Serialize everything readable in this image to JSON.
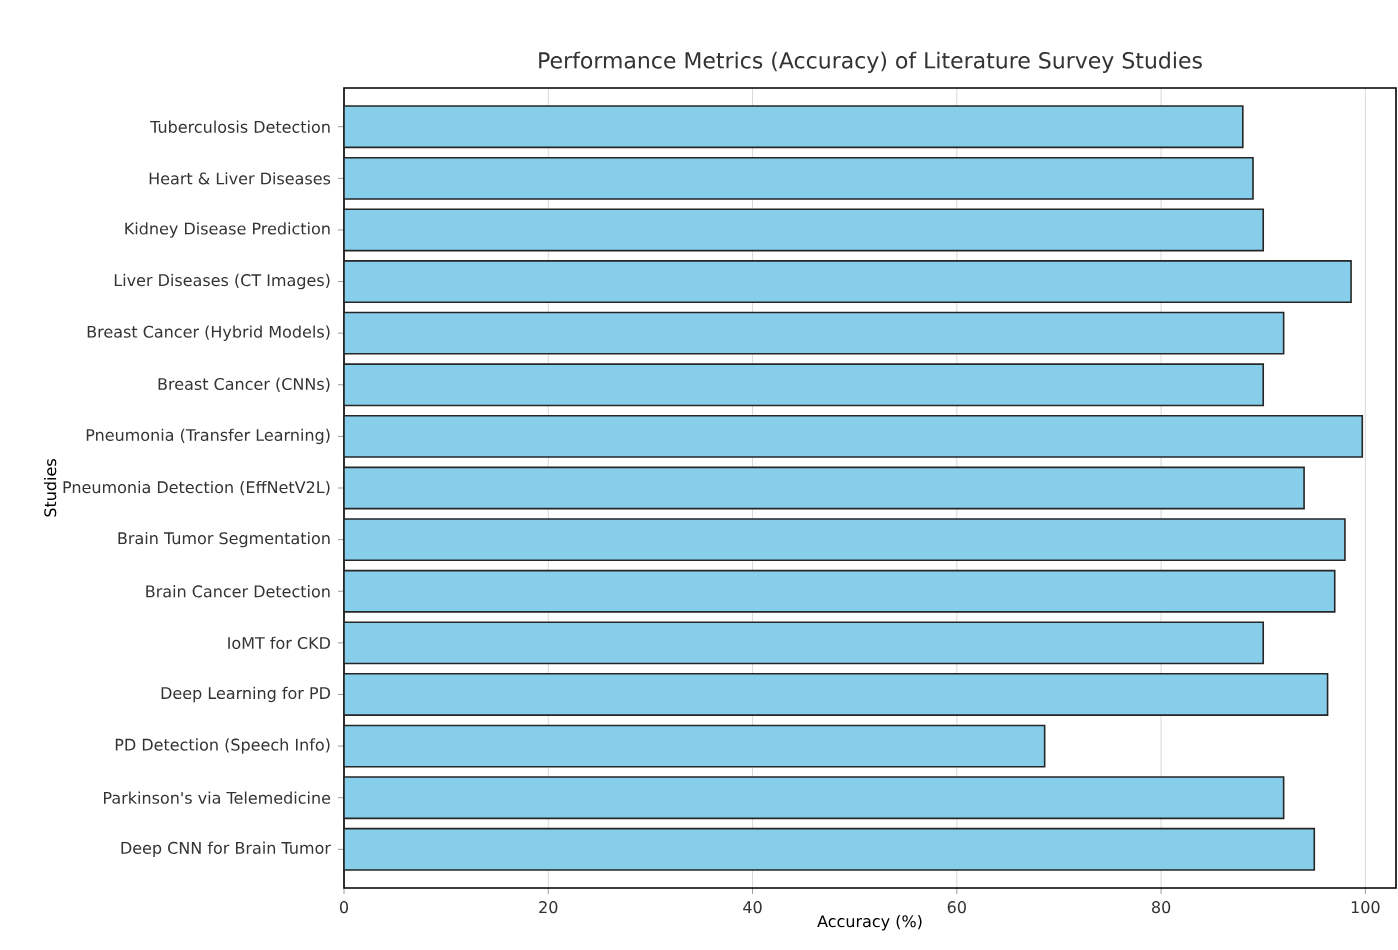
{
  "chart_data": {
    "type": "bar",
    "orientation": "horizontal",
    "title": "Performance Metrics (Accuracy) of Literature Survey Studies",
    "xlabel": "Accuracy (%)",
    "ylabel": "Studies",
    "categories": [
      "Tuberculosis Detection",
      "Heart & Liver Diseases",
      "Kidney Disease Prediction",
      "Liver Diseases (CT Images)",
      "Breast Cancer (Hybrid Models)",
      "Breast Cancer (CNNs)",
      "Pneumonia (Transfer Learning)",
      "Pneumonia Detection (EffNetV2L)",
      "Brain Tumor Segmentation",
      "Brain Cancer Detection",
      "IoMT for CKD",
      "Deep Learning for PD",
      "PD Detection (Speech Info)",
      "Parkinson's via Telemedicine",
      "Deep CNN for Brain Tumor"
    ],
    "values": [
      88.0,
      89.0,
      90.0,
      98.6,
      92.0,
      90.0,
      99.7,
      94.0,
      98.0,
      97.0,
      90.0,
      96.3,
      68.6,
      92.0,
      95.0
    ],
    "color": "#87ceeb",
    "xlim": [
      0,
      103
    ],
    "xticks": [
      0,
      20,
      40,
      60,
      80,
      100
    ],
    "grid": "x"
  }
}
